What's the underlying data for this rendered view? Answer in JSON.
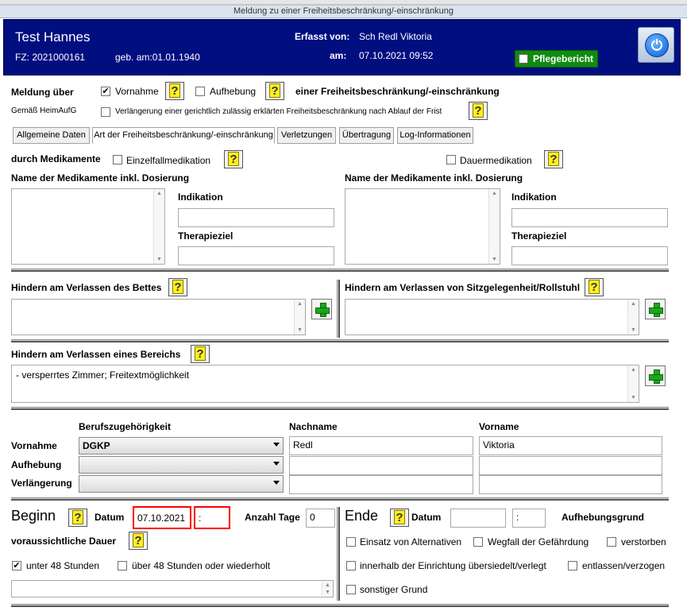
{
  "window_title": "Meldung zu einer Freiheitsbeschränkung/-einschränkung",
  "header": {
    "name": "Test Hannes",
    "fz": "FZ: 2021000161",
    "geb": "geb. am:01.01.1940",
    "erfasst_von_label": "Erfasst von:",
    "erfasst_von": "Sch Redl Viktoria",
    "am_label": "am:",
    "am": "07.10.2021 09:52",
    "pflegebericht": "Pflegebericht"
  },
  "meldung": {
    "label": "Meldung über",
    "vornahme": "Vornahme",
    "aufhebung": "Aufhebung",
    "suffix": "einer Freiheitsbeschränkung/-einschränkung",
    "gemaess": "Gemäß HeimAufG",
    "verlaengerung": "Verlängerung einer gerichtlich zulässig erklärten Freiheitsbeschränkung nach Ablauf der Frist"
  },
  "tabs": [
    "Allgemeine Daten",
    "Art der Freiheitsbeschränkung/-einschränkung",
    "Verletzungen",
    "Übertragung",
    "Log-Informationen"
  ],
  "medikamente": {
    "label": "durch Medikamente",
    "einzelfall": "Einzelfallmedikation",
    "dauer": "Dauermedikation",
    "name_label": "Name der Medikamente inkl. Dosierung",
    "indikation": "Indikation",
    "therapieziel": "Therapieziel"
  },
  "hindern": {
    "bett": "Hindern am Verlassen des Bettes",
    "sitz": "Hindern am Verlassen von Sitzgelegenheit/Rollstuhl",
    "bereich": "Hindern am Verlassen eines Bereichs",
    "bereich_text": "- versperrtes Zimmer; Freitextmöglichkeit"
  },
  "personen": {
    "col_beruf": "Berufszugehörigkeit",
    "col_nachname": "Nachname",
    "col_vorname": "Vorname",
    "rows": [
      {
        "label": "Vornahme",
        "beruf": "DGKP",
        "nachname": "Redl",
        "vorname": "Viktoria"
      },
      {
        "label": "Aufhebung",
        "beruf": "",
        "nachname": "",
        "vorname": ""
      },
      {
        "label": "Verlängerung",
        "beruf": "",
        "nachname": "",
        "vorname": ""
      }
    ]
  },
  "beginn": {
    "title": "Beginn",
    "datum_label": "Datum",
    "datum": "07.10.2021",
    "zeit": ":",
    "anzahl_tage_label": "Anzahl Tage",
    "anzahl_tage": "0",
    "dauer_label": "voraussichtliche Dauer",
    "unter48": "unter 48 Stunden",
    "ueber48": "über 48 Stunden oder wiederholt"
  },
  "ende": {
    "title": "Ende",
    "datum_label": "Datum",
    "zeit": ":",
    "grund_label": "Aufhebungsgrund",
    "einsatz": "Einsatz von Alternativen",
    "wegfall": "Wegfall der Gefährdung",
    "verstorben": "verstorben",
    "innerhalb": "innerhalb der Einrichtung übersiedelt/verlegt",
    "entlassen": "entlassen/verzogen",
    "sonstiger": "sonstiger Grund"
  },
  "colors": {
    "header_bg": "#000e80",
    "pflege_bg": "#0f8c0f",
    "highlight": "#ff0000"
  }
}
